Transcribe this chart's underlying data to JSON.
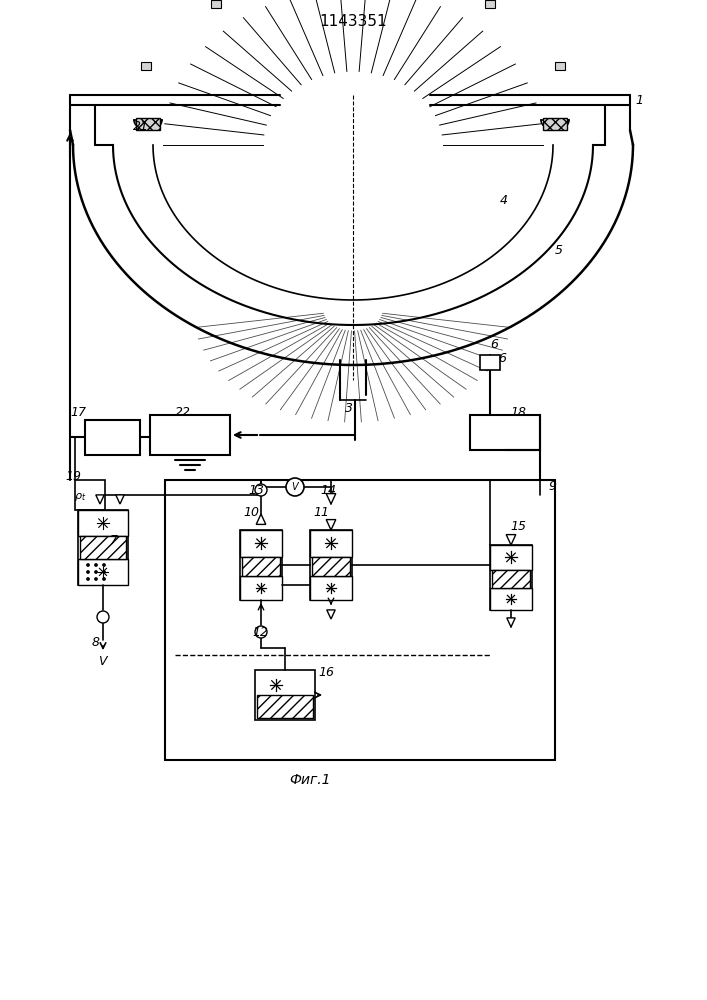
{
  "title": "1143351",
  "fig_label": "Фиг.1",
  "bg_color": "#ffffff",
  "line_color": "#000000",
  "title_fontsize": 11,
  "label_fontsize": 9
}
